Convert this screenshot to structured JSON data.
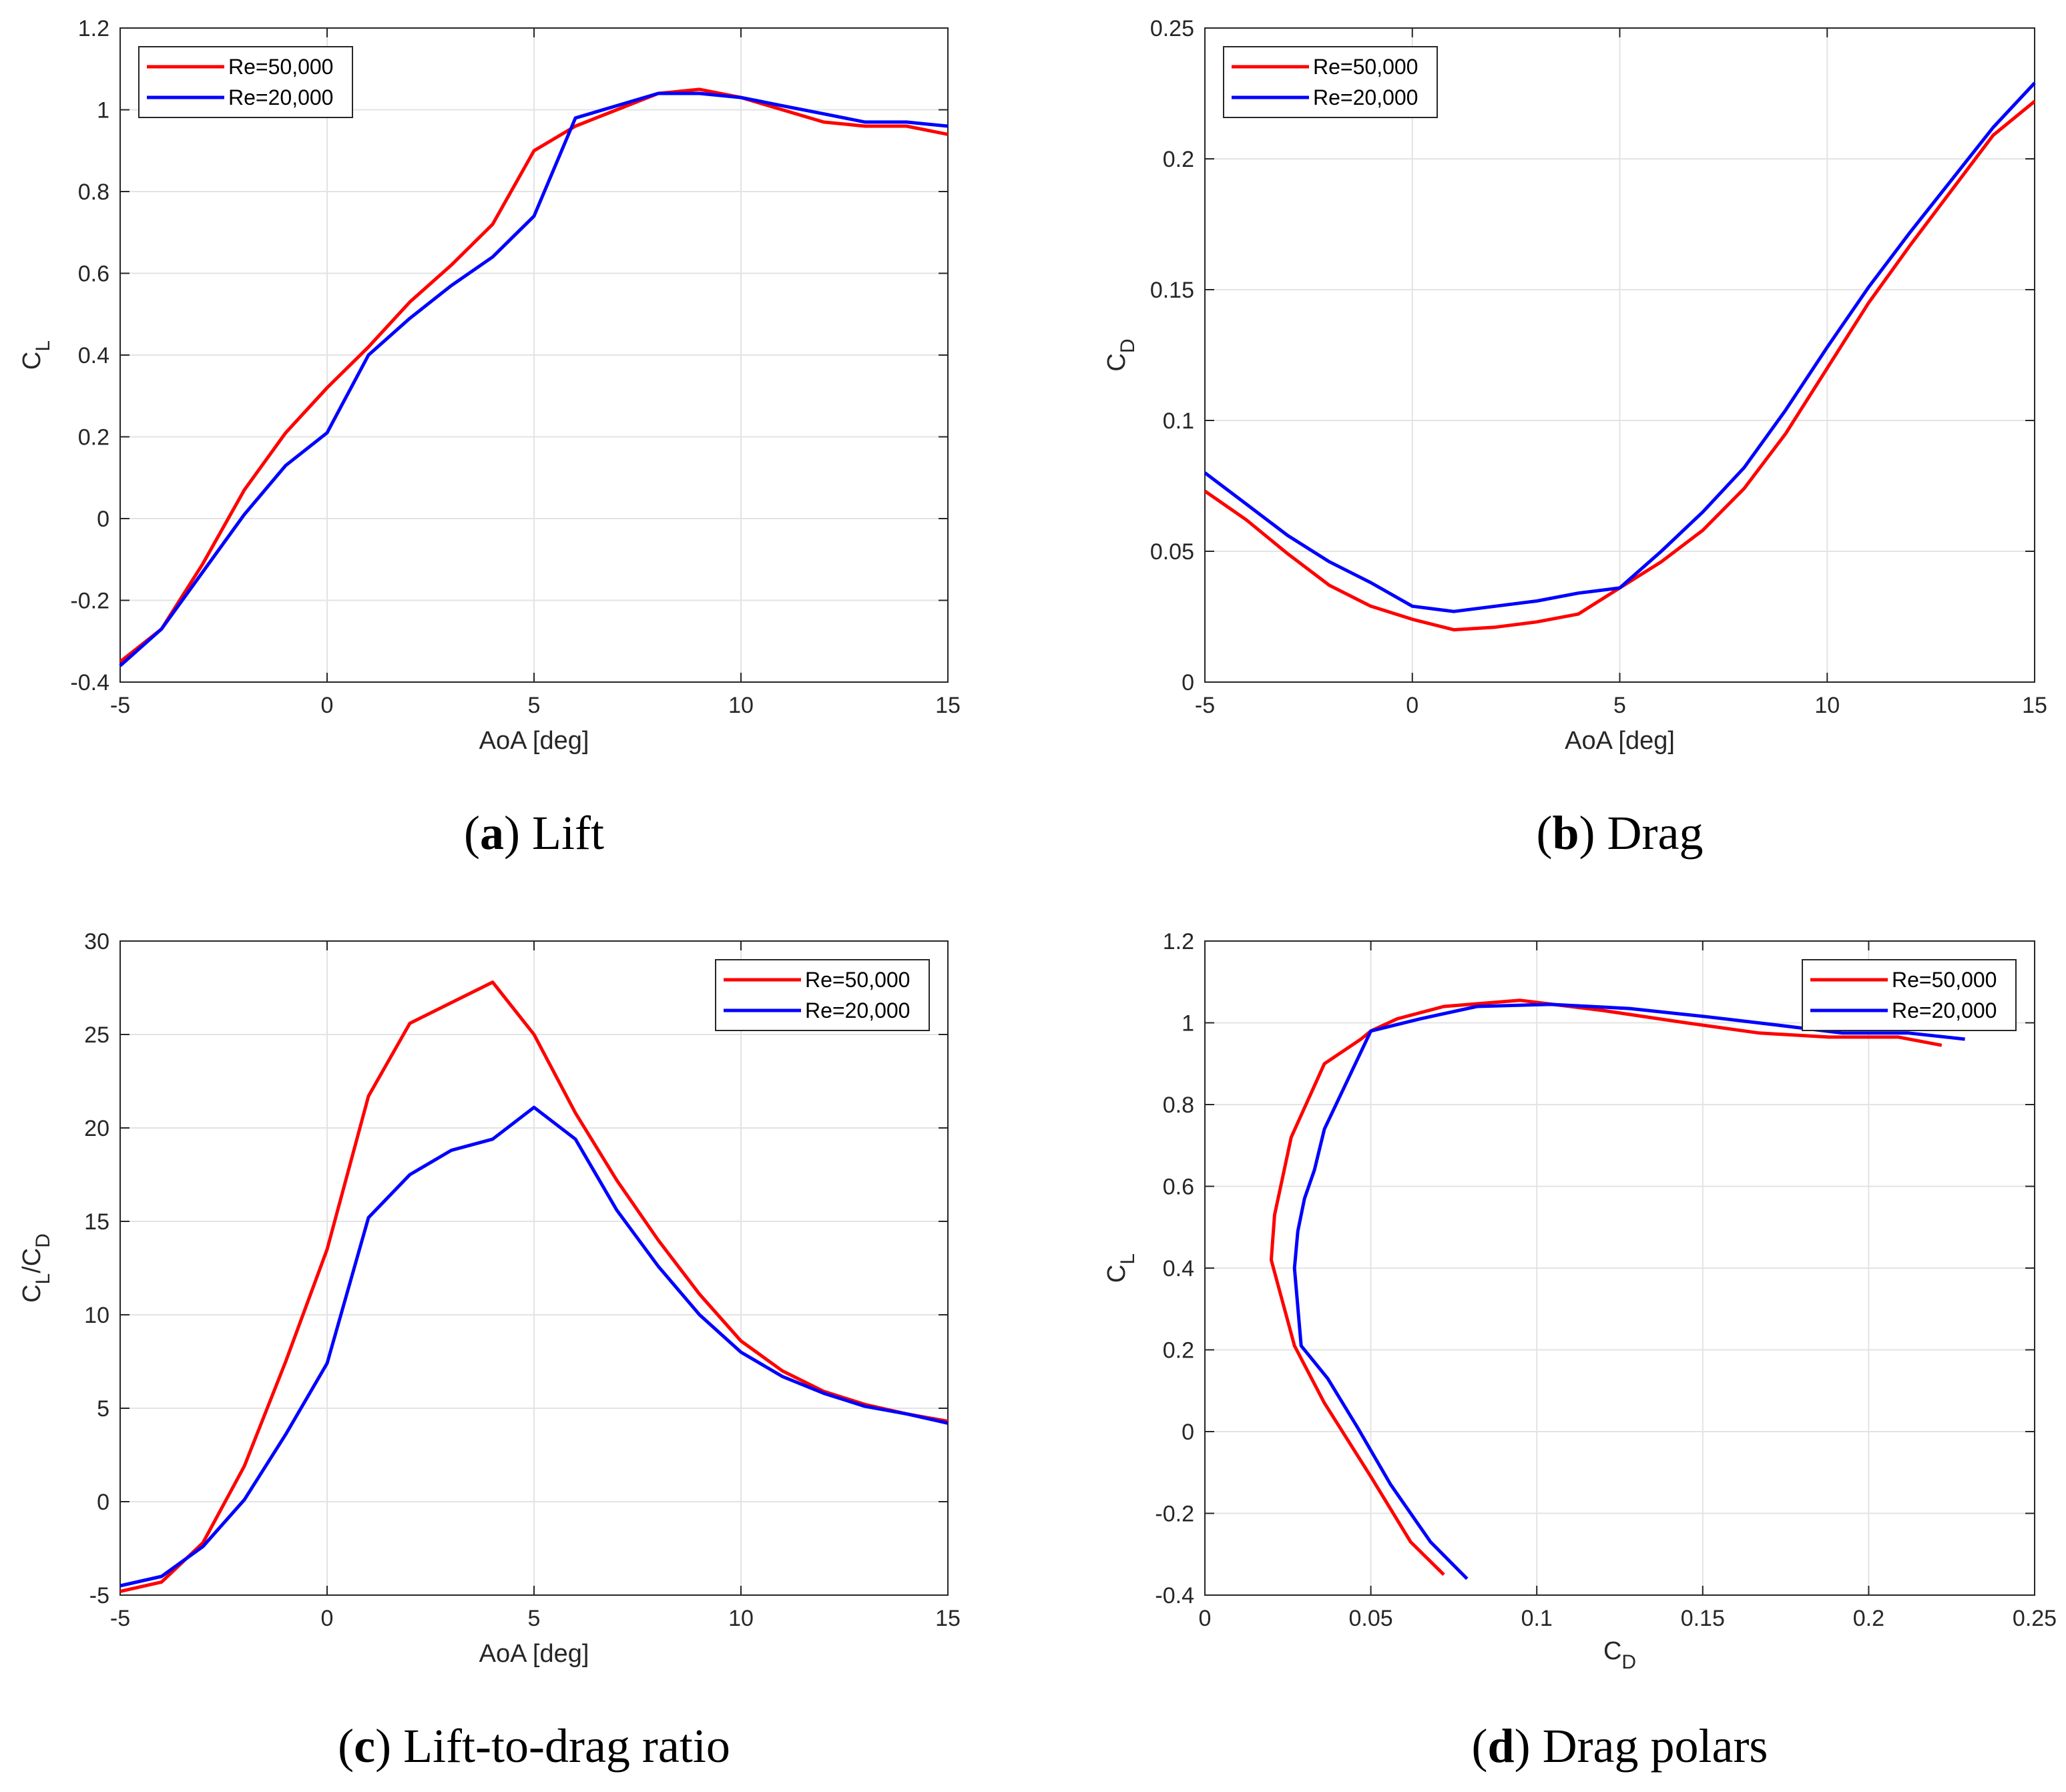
{
  "colors": {
    "re50": "#ff0000",
    "re20": "#0000ff",
    "grid": "#e3e3e3",
    "axis": "#262626"
  },
  "legend_labels": [
    "Re=50,000",
    "Re=20,000"
  ],
  "chart_data": [
    {
      "id": "a",
      "type": "line",
      "caption_letter": "a",
      "caption_text": "Lift",
      "xlabel": "AoA [deg]",
      "ylabel_main": "C",
      "ylabel_sub": "L",
      "xlim": [
        -5,
        15
      ],
      "ylim": [
        -0.4,
        1.2
      ],
      "xticks": [
        -5,
        0,
        5,
        10,
        15
      ],
      "xtick_labels": [
        "-5",
        "0",
        "5",
        "10",
        "15"
      ],
      "yticks": [
        -0.4,
        -0.2,
        0,
        0.2,
        0.4,
        0.6,
        0.8,
        1,
        1.2
      ],
      "ytick_labels": [
        "-0.4",
        "-0.2",
        "0",
        "0.2",
        "0.4",
        "0.6",
        "0.8",
        "1",
        "1.2"
      ],
      "legend_loc": "top-left",
      "series": [
        {
          "name": "Re=50,000",
          "color": "#ff0000",
          "x": [
            -5,
            -4,
            -3,
            -2,
            -1,
            0,
            1,
            2,
            3,
            4,
            5,
            6,
            7,
            8,
            9,
            10,
            11,
            12,
            13,
            14,
            15
          ],
          "y": [
            -0.35,
            -0.27,
            -0.11,
            0.07,
            0.21,
            0.32,
            0.42,
            0.53,
            0.62,
            0.72,
            0.9,
            0.96,
            1.0,
            1.04,
            1.05,
            1.03,
            1.0,
            0.97,
            0.96,
            0.96,
            0.94
          ]
        },
        {
          "name": "Re=20,000",
          "color": "#0000ff",
          "x": [
            -5,
            -4,
            -3,
            -2,
            -1,
            0,
            1,
            2,
            3,
            4,
            5,
            6,
            7,
            8,
            9,
            10,
            11,
            12,
            13,
            14,
            15
          ],
          "y": [
            -0.36,
            -0.27,
            -0.13,
            0.01,
            0.13,
            0.21,
            0.4,
            0.49,
            0.57,
            0.64,
            0.74,
            0.98,
            1.01,
            1.04,
            1.04,
            1.03,
            1.01,
            0.99,
            0.97,
            0.97,
            0.96
          ]
        }
      ]
    },
    {
      "id": "b",
      "type": "line",
      "caption_letter": "b",
      "caption_text": "Drag",
      "xlabel": "AoA [deg]",
      "ylabel_main": "C",
      "ylabel_sub": "D",
      "xlim": [
        -5,
        15
      ],
      "ylim": [
        0,
        0.25
      ],
      "xticks": [
        -5,
        0,
        5,
        10,
        15
      ],
      "xtick_labels": [
        "-5",
        "0",
        "5",
        "10",
        "15"
      ],
      "yticks": [
        0,
        0.05,
        0.1,
        0.15,
        0.2,
        0.25
      ],
      "ytick_labels": [
        "0",
        "0.05",
        "0.1",
        "0.15",
        "0.2",
        "0.25"
      ],
      "legend_loc": "top-left",
      "series": [
        {
          "name": "Re=50,000",
          "color": "#ff0000",
          "x": [
            -5,
            -4,
            -3,
            -2,
            -1,
            0,
            1,
            2,
            3,
            4,
            5,
            6,
            7,
            8,
            9,
            10,
            11,
            12,
            13,
            14,
            15
          ],
          "y": [
            0.073,
            0.062,
            0.049,
            0.037,
            0.029,
            0.024,
            0.02,
            0.021,
            0.023,
            0.026,
            0.036,
            0.046,
            0.058,
            0.074,
            0.095,
            0.12,
            0.145,
            0.167,
            0.188,
            0.209,
            0.222
          ]
        },
        {
          "name": "Re=20,000",
          "color": "#0000ff",
          "x": [
            -5,
            -4,
            -3,
            -2,
            -1,
            0,
            1,
            2,
            3,
            4,
            5,
            6,
            7,
            8,
            9,
            10,
            11,
            12,
            13,
            14,
            15
          ],
          "y": [
            0.08,
            0.068,
            0.056,
            0.046,
            0.038,
            0.029,
            0.027,
            0.029,
            0.031,
            0.034,
            0.036,
            0.05,
            0.065,
            0.082,
            0.104,
            0.128,
            0.151,
            0.172,
            0.192,
            0.212,
            0.229
          ]
        }
      ]
    },
    {
      "id": "c",
      "type": "line",
      "caption_letter": "c",
      "caption_text": "Lift-to-drag ratio",
      "xlabel": "AoA [deg]",
      "ylabel_main": "C",
      "ylabel_sub": "L",
      "ylabel_mid": "/C",
      "ylabel_sub2": "D",
      "xlim": [
        -5,
        15
      ],
      "ylim": [
        -5,
        30
      ],
      "xticks": [
        -5,
        0,
        5,
        10,
        15
      ],
      "xtick_labels": [
        "-5",
        "0",
        "5",
        "10",
        "15"
      ],
      "yticks": [
        -5,
        0,
        5,
        10,
        15,
        20,
        25,
        30
      ],
      "ytick_labels": [
        "-5",
        "0",
        "5",
        "10",
        "15",
        "20",
        "25",
        "30"
      ],
      "legend_loc": "top-right",
      "series": [
        {
          "name": "Re=50,000",
          "color": "#ff0000",
          "x": [
            -5,
            -4,
            -3,
            -2,
            -1,
            0,
            1,
            2,
            3,
            4,
            5,
            6,
            7,
            8,
            9,
            10,
            11,
            12,
            13,
            14,
            15
          ],
          "y": [
            -4.8,
            -4.3,
            -2.2,
            1.9,
            7.5,
            13.5,
            21.7,
            25.6,
            26.7,
            27.8,
            25.0,
            20.8,
            17.2,
            14.0,
            11.1,
            8.6,
            7.0,
            5.9,
            5.2,
            4.7,
            4.3
          ]
        },
        {
          "name": "Re=20,000",
          "color": "#0000ff",
          "x": [
            -5,
            -4,
            -3,
            -2,
            -1,
            0,
            1,
            2,
            3,
            4,
            5,
            6,
            7,
            8,
            9,
            10,
            11,
            12,
            13,
            14,
            15
          ],
          "y": [
            -4.5,
            -4.0,
            -2.4,
            0.1,
            3.6,
            7.4,
            15.2,
            17.5,
            18.8,
            19.4,
            21.1,
            19.4,
            15.6,
            12.6,
            10.0,
            8.0,
            6.7,
            5.8,
            5.1,
            4.7,
            4.2
          ]
        }
      ]
    },
    {
      "id": "d",
      "type": "line",
      "caption_letter": "d",
      "caption_text": "Drag polars",
      "xlabel_main": "C",
      "xlabel_sub": "D",
      "ylabel_main": "C",
      "ylabel_sub": "L",
      "xlim": [
        0,
        0.25
      ],
      "ylim": [
        -0.4,
        1.2
      ],
      "xticks": [
        0,
        0.05,
        0.1,
        0.15,
        0.2,
        0.25
      ],
      "xtick_labels": [
        "0",
        "0.05",
        "0.1",
        "0.15",
        "0.2",
        "0.25"
      ],
      "yticks": [
        -0.4,
        -0.2,
        0,
        0.2,
        0.4,
        0.6,
        0.8,
        1,
        1.2
      ],
      "ytick_labels": [
        "-0.4",
        "-0.2",
        "0",
        "0.2",
        "0.4",
        "0.6",
        "0.8",
        "1",
        "1.2"
      ],
      "legend_loc": "top-right",
      "series": [
        {
          "name": "Re=50,000",
          "color": "#ff0000",
          "x": [
            0.072,
            0.062,
            0.05,
            0.036,
            0.027,
            0.02,
            0.021,
            0.026,
            0.036,
            0.047,
            0.05,
            0.058,
            0.072,
            0.095,
            0.12,
            0.145,
            0.167,
            0.188,
            0.209,
            0.222
          ],
          "y": [
            -0.35,
            -0.27,
            -0.11,
            0.07,
            0.21,
            0.42,
            0.53,
            0.72,
            0.9,
            0.96,
            0.98,
            1.01,
            1.04,
            1.055,
            1.03,
            1.0,
            0.975,
            0.965,
            0.965,
            0.945
          ]
        },
        {
          "name": "Re=20,000",
          "color": "#0000ff",
          "x": [
            0.079,
            0.068,
            0.056,
            0.046,
            0.037,
            0.029,
            0.027,
            0.028,
            0.03,
            0.033,
            0.036,
            0.05,
            0.065,
            0.082,
            0.104,
            0.128,
            0.151,
            0.172,
            0.192,
            0.212,
            0.229
          ],
          "y": [
            -0.36,
            -0.27,
            -0.13,
            0.01,
            0.13,
            0.21,
            0.4,
            0.49,
            0.57,
            0.64,
            0.74,
            0.98,
            1.01,
            1.04,
            1.045,
            1.035,
            1.015,
            0.995,
            0.975,
            0.975,
            0.96
          ]
        }
      ]
    }
  ]
}
